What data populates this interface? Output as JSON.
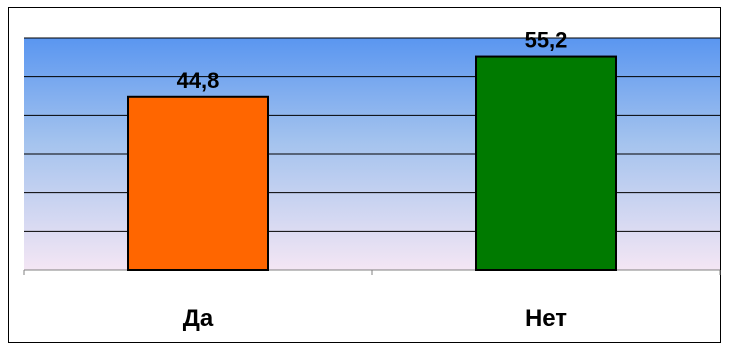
{
  "chart_data": {
    "type": "bar",
    "categories": [
      "Да",
      "Нет"
    ],
    "values": [
      44.8,
      55.2
    ],
    "value_labels": [
      "44,8",
      "55,2"
    ],
    "bar_colors": [
      "#FF6600",
      "#007A00"
    ],
    "ylim": [
      0,
      60
    ],
    "grid": true,
    "title": "",
    "xlabel": "",
    "ylabel": "",
    "legend": "none",
    "plot_background": "gradient blue to pink"
  }
}
